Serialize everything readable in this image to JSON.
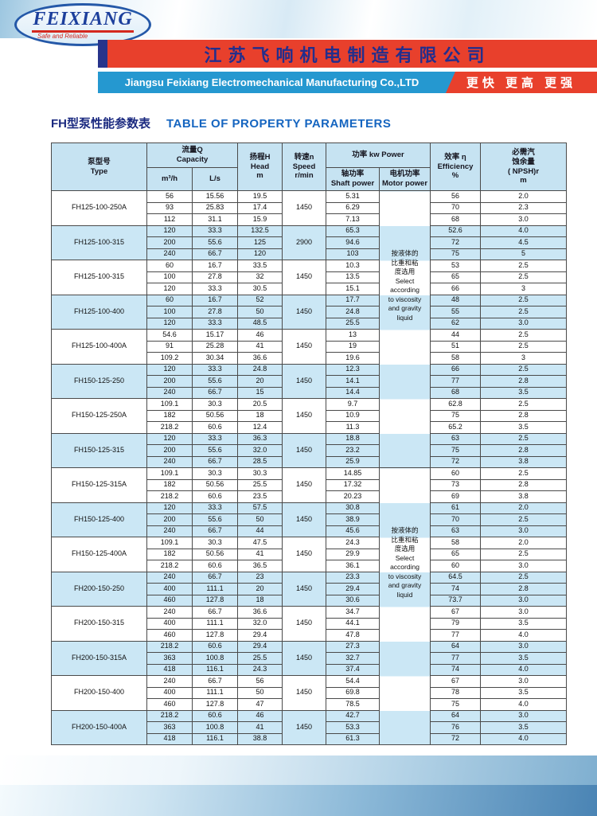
{
  "logo": {
    "brand": "FEIXIANG",
    "tagline": "Safe and Reliable"
  },
  "banner": {
    "company_cn": "江苏飞响机电制造有限公司",
    "company_en": "Jiangsu Feixiang Electromechanical Manufacturing Co.,LTD",
    "slogan": "更快 更高 更强"
  },
  "title": {
    "cn": "FH型泵性能参数表",
    "en": "TABLE OF PROPERTY PARAMETERS"
  },
  "table": {
    "headers": {
      "type": "泵型号\nType",
      "capacity": "流量Q\nCapacity",
      "unit_m3h": "m³/h",
      "unit_ls": "L/s",
      "head": "扬程H\nHead\nm",
      "speed": "转速n\nSpeed\nr/min",
      "power": "功率  kw  Power",
      "shaft": "轴功率\nShaft power",
      "motor": "电机功率\nMotor power",
      "efficiency": "效率 η\nEfficiency\n%",
      "npsh": "必需汽\n蚀余量\n( NPSH)r\nm"
    },
    "motor_note": "按液体的\n比重和粘\n度选用\nSelect\naccording\nto viscosity\nand gravity\nliquid",
    "groups": [
      {
        "type": "FH125-100-250A",
        "speed": "1450",
        "rows": [
          [
            "56",
            "15.56",
            "19.5",
            "5.31",
            "56",
            "2.0"
          ],
          [
            "93",
            "25.83",
            "17.4",
            "6.29",
            "70",
            "2.3"
          ],
          [
            "112",
            "31.1",
            "15.9",
            "7.13",
            "68",
            "3.0"
          ]
        ]
      },
      {
        "type": "FH125-100-315",
        "speed": "2900",
        "rows": [
          [
            "120",
            "33.3",
            "132.5",
            "65.3",
            "52.6",
            "4.0"
          ],
          [
            "200",
            "55.6",
            "125",
            "94.6",
            "72",
            "4.5"
          ],
          [
            "240",
            "66.7",
            "120",
            "103",
            "75",
            "5"
          ]
        ]
      },
      {
        "type": "FH125-100-315",
        "speed": "1450",
        "rows": [
          [
            "60",
            "16.7",
            "33.5",
            "10.3",
            "53",
            "2.5"
          ],
          [
            "100",
            "27.8",
            "32",
            "13.5",
            "65",
            "2.5"
          ],
          [
            "120",
            "33.3",
            "30.5",
            "15.1",
            "66",
            "3"
          ]
        ]
      },
      {
        "type": "FH125-100-400",
        "speed": "1450",
        "rows": [
          [
            "60",
            "16.7",
            "52",
            "17.7",
            "48",
            "2.5"
          ],
          [
            "100",
            "27.8",
            "50",
            "24.8",
            "55",
            "2.5"
          ],
          [
            "120",
            "33.3",
            "48.5",
            "25.5",
            "62",
            "3.0"
          ]
        ]
      },
      {
        "type": "FH125-100-400A",
        "speed": "1450",
        "rows": [
          [
            "54.6",
            "15.17",
            "46",
            "13",
            "44",
            "2.5"
          ],
          [
            "91",
            "25.28",
            "41",
            "19",
            "51",
            "2.5"
          ],
          [
            "109.2",
            "30.34",
            "36.6",
            "19.6",
            "58",
            "3"
          ]
        ]
      },
      {
        "type": "FH150-125-250",
        "speed": "1450",
        "rows": [
          [
            "120",
            "33.3",
            "24.8",
            "12.3",
            "66",
            "2.5"
          ],
          [
            "200",
            "55.6",
            "20",
            "14.1",
            "77",
            "2.8"
          ],
          [
            "240",
            "66.7",
            "15",
            "14.4",
            "68",
            "3.5"
          ]
        ]
      },
      {
        "type": "FH150-125-250A",
        "speed": "1450",
        "rows": [
          [
            "109.1",
            "30.3",
            "20.5",
            "9.7",
            "62.8",
            "2.5"
          ],
          [
            "182",
            "50.56",
            "18",
            "10.9",
            "75",
            "2.8"
          ],
          [
            "218.2",
            "60.6",
            "12.4",
            "11.3",
            "65.2",
            "3.5"
          ]
        ]
      },
      {
        "type": "FH150-125-315",
        "speed": "1450",
        "rows": [
          [
            "120",
            "33.3",
            "36.3",
            "18.8",
            "63",
            "2.5"
          ],
          [
            "200",
            "55.6",
            "32.0",
            "23.2",
            "75",
            "2.8"
          ],
          [
            "240",
            "66.7",
            "28.5",
            "25.9",
            "72",
            "3.8"
          ]
        ]
      },
      {
        "type": "FH150-125-315A",
        "speed": "1450",
        "rows": [
          [
            "109.1",
            "30.3",
            "30.3",
            "14.85",
            "60",
            "2.5"
          ],
          [
            "182",
            "50.56",
            "25.5",
            "17.32",
            "73",
            "2.8"
          ],
          [
            "218.2",
            "60.6",
            "23.5",
            "20.23",
            "69",
            "3.8"
          ]
        ]
      },
      {
        "type": "FH150-125-400",
        "speed": "1450",
        "rows": [
          [
            "120",
            "33.3",
            "57.5",
            "30.8",
            "61",
            "2.0"
          ],
          [
            "200",
            "55.6",
            "50",
            "38.9",
            "70",
            "2.5"
          ],
          [
            "240",
            "66.7",
            "44",
            "45.6",
            "63",
            "3.0"
          ]
        ]
      },
      {
        "type": "FH150-125-400A",
        "speed": "1450",
        "rows": [
          [
            "109.1",
            "30.3",
            "47.5",
            "24.3",
            "58",
            "2.0"
          ],
          [
            "182",
            "50.56",
            "41",
            "29.9",
            "65",
            "2.5"
          ],
          [
            "218.2",
            "60.6",
            "36.5",
            "36.1",
            "60",
            "3.0"
          ]
        ]
      },
      {
        "type": "FH200-150-250",
        "speed": "1450",
        "rows": [
          [
            "240",
            "66.7",
            "23",
            "23.3",
            "64.5",
            "2.5"
          ],
          [
            "400",
            "111.1",
            "20",
            "29.4",
            "74",
            "2.8"
          ],
          [
            "460",
            "127.8",
            "18",
            "30.6",
            "73.7",
            "3.0"
          ]
        ]
      },
      {
        "type": "FH200-150-315",
        "speed": "1450",
        "rows": [
          [
            "240",
            "66.7",
            "36.6",
            "34.7",
            "67",
            "3.0"
          ],
          [
            "400",
            "111.1",
            "32.0",
            "44.1",
            "79",
            "3.5"
          ],
          [
            "460",
            "127.8",
            "29.4",
            "47.8",
            "77",
            "4.0"
          ]
        ]
      },
      {
        "type": "FH200-150-315A",
        "speed": "1450",
        "rows": [
          [
            "218.2",
            "60.6",
            "29.4",
            "27.3",
            "64",
            "3.0"
          ],
          [
            "363",
            "100.8",
            "25.5",
            "32.7",
            "77",
            "3.5"
          ],
          [
            "418",
            "116.1",
            "24.3",
            "37.4",
            "74",
            "4.0"
          ]
        ]
      },
      {
        "type": "FH200-150-400",
        "speed": "1450",
        "rows": [
          [
            "240",
            "66.7",
            "56",
            "54.4",
            "67",
            "3.0"
          ],
          [
            "400",
            "111.1",
            "50",
            "69.8",
            "78",
            "3.5"
          ],
          [
            "460",
            "127.8",
            "47",
            "78.5",
            "75",
            "4.0"
          ]
        ]
      },
      {
        "type": "FH200-150-400A",
        "speed": "1450",
        "rows": [
          [
            "218.2",
            "60.6",
            "46",
            "42.7",
            "64",
            "3.0"
          ],
          [
            "363",
            "100.8",
            "41",
            "53.3",
            "76",
            "3.5"
          ],
          [
            "418",
            "116.1",
            "38.8",
            "61.3",
            "72",
            "4.0"
          ]
        ]
      }
    ]
  }
}
